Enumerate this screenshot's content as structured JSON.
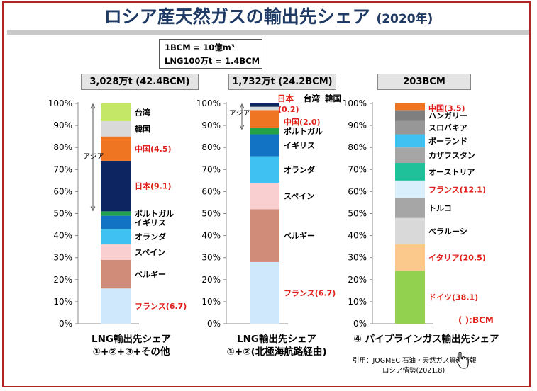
{
  "title": {
    "main": "ロシア産天然ガスの輸出先シェア",
    "year": "(2020年)"
  },
  "unit_note": {
    "line1": "1BCM = 10億m³",
    "line2": "LNG100万t = 1.4BCM"
  },
  "bcm_note": "( ):BCM",
  "citation": {
    "line1": "引用：JOGMEC 石油・天然ガス資源情報",
    "line2": "ロシア情勢(2021.8)"
  },
  "colors": {
    "title": "#1f3a64",
    "frame": "#b22424",
    "red_label": "#e0201a"
  },
  "chart_data": [
    {
      "type": "bar",
      "stacked": true,
      "header": "3,028万t (42.4BCM)",
      "caption": [
        "LNG輸出先シェア",
        "①+②+③+その他"
      ],
      "ylim": [
        0,
        100
      ],
      "yticks": [
        "0%",
        "10%",
        "20%",
        "30%",
        "40%",
        "50%",
        "60%",
        "70%",
        "80%",
        "90%",
        "100%"
      ],
      "group_label": "アジア",
      "group_range": [
        51,
        100
      ],
      "segments": [
        {
          "label": "フランス(6.7)",
          "value": 16,
          "color": "#cfe8fb",
          "label_color": "#e0201a"
        },
        {
          "label": "ベルギー",
          "value": 13,
          "color": "#d08b79",
          "label_color": "#000000"
        },
        {
          "label": "スペイン",
          "value": 7,
          "color": "#f9cfd0",
          "label_color": "#000000"
        },
        {
          "label": "オランダ",
          "value": 7,
          "color": "#3fc2f2",
          "label_color": "#000000"
        },
        {
          "label": "イギリス",
          "value": 6,
          "color": "#1272c4",
          "label_color": "#000000"
        },
        {
          "label": "ポルトガル",
          "value": 2,
          "color": "#24a04b",
          "label_color": "#000000"
        },
        {
          "label": "日本(9.1)",
          "value": 23,
          "color": "#0d2561",
          "label_color": "#e0201a"
        },
        {
          "label": "中国(4.5)",
          "value": 11,
          "color": "#f07522",
          "label_color": "#e0201a"
        },
        {
          "label": "韓国",
          "value": 7,
          "color": "#d9d9d9",
          "label_color": "#000000"
        },
        {
          "label": "台湾",
          "value": 8,
          "color": "#c5e767",
          "label_color": "#000000"
        }
      ]
    },
    {
      "type": "bar",
      "stacked": true,
      "header": "1,732万t (24.2BCM)",
      "caption": [
        "LNG輸出先シェア",
        "①+②(北極海航路経由)"
      ],
      "ylim": [
        0,
        100
      ],
      "yticks": [
        "0%",
        "10%",
        "20%",
        "30%",
        "40%",
        "50%",
        "60%",
        "70%",
        "80%",
        "90%",
        "100%"
      ],
      "group_label": "アジア",
      "group_range": [
        88,
        100
      ],
      "top_labels": {
        "japan": "日本",
        "taiwan": "台湾",
        "korea": "韓国",
        "small_value": "(0.2)"
      },
      "segments": [
        {
          "label": "フランス(6.7)",
          "value": 28,
          "color": "#cfe8fb",
          "label_color": "#e0201a"
        },
        {
          "label": "ベルギー",
          "value": 24,
          "color": "#d08b79",
          "label_color": "#000000"
        },
        {
          "label": "スペイン",
          "value": 12,
          "color": "#f9cfd0",
          "label_color": "#000000"
        },
        {
          "label": "オランダ",
          "value": 12,
          "color": "#3fc2f2",
          "label_color": "#000000"
        },
        {
          "label": "イギリス",
          "value": 10,
          "color": "#1272c4",
          "label_color": "#000000"
        },
        {
          "label": "ポルトガル",
          "value": 3,
          "color": "#24a04b",
          "label_color": "#000000"
        },
        {
          "label": "中国(2.0)",
          "value": 8,
          "color": "#f07522",
          "label_color": "#e0201a"
        },
        {
          "label": "",
          "value": 1.5,
          "color": "#d9d9d9",
          "label_color": "#000000"
        },
        {
          "label": "",
          "value": 1.5,
          "color": "#0d2561",
          "label_color": "#000000"
        }
      ]
    },
    {
      "type": "bar",
      "stacked": true,
      "header": "203BCM",
      "caption": [
        "④ パイプラインガス輸出先シェア"
      ],
      "ylim": [
        0,
        100
      ],
      "yticks": [
        "0%",
        "10%",
        "20%",
        "30%",
        "40%",
        "50%",
        "60%",
        "70%",
        "80%",
        "90%",
        "100%"
      ],
      "segments": [
        {
          "label": "ドイツ(38.1)",
          "value": 24,
          "color": "#92d050",
          "label_color": "#e0201a"
        },
        {
          "label": "イタリア(20.5)",
          "value": 12,
          "color": "#fcc98d",
          "label_color": "#e0201a"
        },
        {
          "label": "ベラルーシ",
          "value": 12,
          "color": "#d9d9d9",
          "label_color": "#000000"
        },
        {
          "label": "トルコ",
          "value": 9,
          "color": "#a6a6a6",
          "label_color": "#000000"
        },
        {
          "label": "フランス(12.1)",
          "value": 8,
          "color": "#d9effb",
          "label_color": "#e0201a"
        },
        {
          "label": "オーストリア",
          "value": 8,
          "color": "#1fc19b",
          "label_color": "#000000"
        },
        {
          "label": "カザフスタン",
          "value": 7,
          "color": "#a6a6a6",
          "label_color": "#000000"
        },
        {
          "label": "ポーランド",
          "value": 6,
          "color": "#3fc2f2",
          "label_color": "#000000"
        },
        {
          "label": "スロバキア",
          "value": 6,
          "color": "#979797",
          "label_color": "#000000"
        },
        {
          "label": "ハンガリー",
          "value": 5,
          "color": "#7f7f7f",
          "label_color": "#000000"
        },
        {
          "label": "中国(3.5)",
          "value": 3,
          "color": "#f07522",
          "label_color": "#e0201a"
        }
      ]
    }
  ]
}
